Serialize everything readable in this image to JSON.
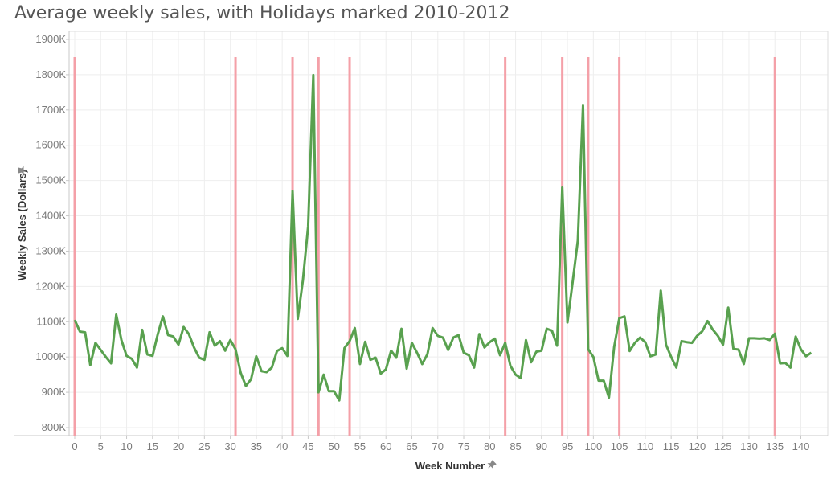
{
  "title": "Average weekly sales, with Holidays marked 2010-2012",
  "colors": {
    "sales_line": "#59a14f",
    "holiday_line": "#f4a0a8",
    "grid": "#eeeeee",
    "axis": "#c8c8c8"
  },
  "icons": {
    "pin": "pin-icon"
  },
  "chart_data": {
    "type": "line",
    "title": "Average weekly sales, with Holidays marked 2010-2012",
    "xlabel": "Week Number",
    "ylabel": "Weekly Sales (Dollars)",
    "xlim": [
      0,
      145
    ],
    "ylim": [
      780000,
      1900000
    ],
    "x_ticks": [
      0,
      5,
      10,
      15,
      20,
      25,
      30,
      35,
      40,
      45,
      50,
      55,
      60,
      65,
      70,
      75,
      80,
      85,
      90,
      95,
      100,
      105,
      110,
      115,
      120,
      125,
      130,
      135,
      140
    ],
    "y_ticks": [
      {
        "value": 800000,
        "label": "800K"
      },
      {
        "value": 900000,
        "label": "900K"
      },
      {
        "value": 1000000,
        "label": "1000K"
      },
      {
        "value": 1100000,
        "label": "1100K"
      },
      {
        "value": 1200000,
        "label": "1200K"
      },
      {
        "value": 1300000,
        "label": "1300K"
      },
      {
        "value": 1400000,
        "label": "1400K"
      },
      {
        "value": 1500000,
        "label": "1500K"
      },
      {
        "value": 1600000,
        "label": "1600K"
      },
      {
        "value": 1700000,
        "label": "1700K"
      },
      {
        "value": 1800000,
        "label": "1800K"
      },
      {
        "value": 1900000,
        "label": "1900K"
      }
    ],
    "holiday_weeks": [
      0,
      31,
      42,
      47,
      53,
      83,
      94,
      99,
      105,
      135
    ],
    "holiday_line_range": [
      780000,
      1850000
    ],
    "grid": true,
    "series": [
      {
        "x": [
          0,
          1,
          2,
          3,
          4,
          5,
          6,
          7,
          8,
          9,
          10,
          11,
          12,
          13,
          14,
          15,
          16,
          17,
          18,
          19,
          20,
          21,
          22,
          23,
          24,
          25,
          26,
          27,
          28,
          29,
          30,
          31,
          32,
          33,
          34,
          35,
          36,
          37,
          38,
          39,
          40,
          41,
          42,
          43,
          44,
          45,
          46,
          47,
          48,
          49,
          50,
          51,
          52,
          53,
          54,
          55,
          56,
          57,
          58,
          59,
          60,
          61,
          62,
          63,
          64,
          65,
          66,
          67,
          68,
          69,
          70,
          71,
          72,
          73,
          74,
          75,
          76,
          77,
          78,
          79,
          80,
          81,
          82,
          83,
          84,
          85,
          86,
          87,
          88,
          89,
          90,
          91,
          92,
          93,
          94,
          95,
          96,
          97,
          98,
          99,
          100,
          101,
          102,
          103,
          104,
          105,
          106,
          107,
          108,
          109,
          110,
          111,
          112,
          113,
          114,
          115,
          116,
          117,
          118,
          119,
          120,
          121,
          122,
          123,
          124,
          125,
          126,
          127,
          128,
          129,
          130,
          131,
          132,
          133,
          134,
          135,
          136,
          137,
          138,
          139,
          140,
          141,
          142
        ],
        "values": [
          1105000,
          1072000,
          1070000,
          977000,
          1040000,
          1020000,
          1000000,
          982000,
          1120000,
          1048000,
          1003000,
          995000,
          970000,
          1077000,
          1007000,
          1003000,
          1064000,
          1115000,
          1062000,
          1058000,
          1035000,
          1085000,
          1065000,
          1027000,
          998000,
          992000,
          1070000,
          1032000,
          1045000,
          1018000,
          1048000,
          1022000,
          955000,
          918000,
          937000,
          1002000,
          960000,
          957000,
          970000,
          1017000,
          1025000,
          1003000,
          1470000,
          1108000,
          1218000,
          1370000,
          1799000,
          900000,
          950000,
          903000,
          903000,
          877000,
          1025000,
          1045000,
          1082000,
          980000,
          1043000,
          992000,
          998000,
          953000,
          965000,
          1018000,
          998000,
          1080000,
          967000,
          1040000,
          1012000,
          980000,
          1008000,
          1082000,
          1060000,
          1055000,
          1020000,
          1055000,
          1062000,
          1012000,
          1005000,
          970000,
          1065000,
          1027000,
          1042000,
          1052000,
          1005000,
          1040000,
          975000,
          950000,
          940000,
          1048000,
          985000,
          1015000,
          1018000,
          1080000,
          1075000,
          1032000,
          1480000,
          1098000,
          1212000,
          1330000,
          1712000,
          1022000,
          1000000,
          933000,
          933000,
          885000,
          1028000,
          1110000,
          1115000,
          1017000,
          1040000,
          1055000,
          1042000,
          1002000,
          1007000,
          1188000,
          1035000,
          1000000,
          970000,
          1045000,
          1042000,
          1040000,
          1060000,
          1073000,
          1102000,
          1078000,
          1060000,
          1035000,
          1140000,
          1023000,
          1021000,
          980000,
          1053000,
          1053000,
          1052000,
          1053000,
          1048000,
          1066000,
          982000,
          983000,
          970000,
          1058000,
          1022000,
          1002000,
          1012000
        ]
      }
    ]
  }
}
